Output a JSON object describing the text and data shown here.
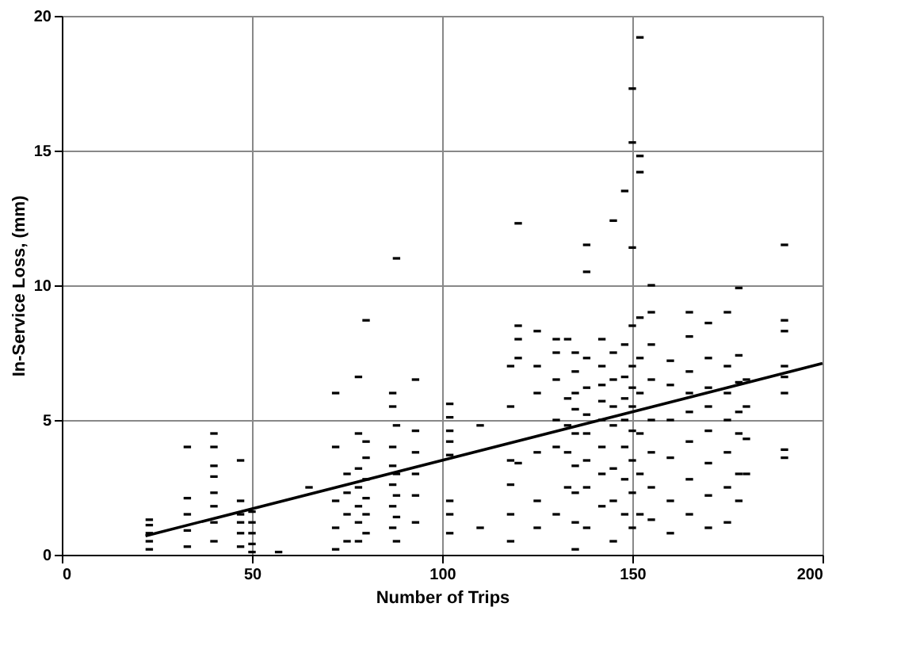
{
  "chart_data": {
    "type": "scatter",
    "xlabel": "Number of Trips",
    "ylabel": "In-Service Loss,       (mm)",
    "xlim": [
      0,
      200
    ],
    "xticks": [
      0,
      50,
      100,
      150,
      200
    ],
    "ylim": [
      0,
      20
    ],
    "yticks": [
      0,
      5,
      10,
      15,
      20
    ],
    "grid": true,
    "series": [
      {
        "color": "#000000",
        "marker": "square",
        "x": [
          23,
          23,
          23,
          23,
          23,
          33,
          33,
          33,
          33,
          33,
          40,
          40,
          40,
          40,
          40,
          40,
          40,
          40,
          47,
          47,
          47,
          47,
          47,
          47,
          50,
          50,
          50,
          50,
          50,
          57,
          65,
          72,
          72,
          72,
          72,
          72,
          75,
          75,
          75,
          75,
          78,
          78,
          78,
          78,
          78,
          78,
          78,
          80,
          80,
          80,
          80,
          80,
          80,
          80,
          87,
          87,
          87,
          87,
          87,
          87,
          87,
          88,
          88,
          88,
          88,
          88,
          88,
          93,
          93,
          93,
          93,
          93,
          93,
          102,
          102,
          102,
          102,
          102,
          102,
          102,
          102,
          110,
          110,
          118,
          118,
          118,
          118,
          118,
          118,
          120,
          120,
          120,
          120,
          120,
          125,
          125,
          125,
          125,
          125,
          125,
          130,
          130,
          130,
          130,
          130,
          130,
          133,
          133,
          133,
          133,
          133,
          135,
          135,
          135,
          135,
          135,
          135,
          135,
          135,
          135,
          138,
          138,
          138,
          138,
          138,
          138,
          138,
          138,
          138,
          142,
          142,
          142,
          142,
          142,
          142,
          142,
          142,
          145,
          145,
          145,
          145,
          145,
          145,
          145,
          145,
          148,
          148,
          148,
          148,
          148,
          148,
          148,
          148,
          150,
          150,
          150,
          150,
          150,
          150,
          150,
          150,
          150,
          150,
          150,
          152,
          152,
          152,
          152,
          152,
          152,
          152,
          152,
          152,
          155,
          155,
          155,
          155,
          155,
          155,
          155,
          155,
          160,
          160,
          160,
          160,
          160,
          160,
          165,
          165,
          165,
          165,
          165,
          165,
          165,
          165,
          170,
          170,
          170,
          170,
          170,
          170,
          170,
          170,
          175,
          175,
          175,
          175,
          175,
          175,
          175,
          178,
          178,
          178,
          178,
          178,
          178,
          178,
          180,
          180,
          180,
          180,
          190,
          190,
          190,
          190,
          190,
          190,
          190,
          190
        ],
        "values": [
          0.2,
          0.5,
          0.8,
          1.1,
          1.3,
          0.3,
          0.9,
          1.5,
          2.1,
          4.0,
          0.5,
          1.2,
          1.8,
          2.3,
          2.9,
          3.3,
          4.0,
          4.5,
          0.3,
          0.8,
          1.2,
          1.5,
          2.0,
          3.5,
          0.1,
          0.4,
          0.8,
          1.2,
          1.6,
          0.1,
          2.5,
          0.2,
          1.0,
          2.0,
          4.0,
          6.0,
          0.5,
          1.5,
          2.3,
          3.0,
          0.5,
          1.2,
          1.8,
          2.5,
          3.2,
          4.5,
          6.6,
          0.8,
          1.5,
          2.1,
          2.8,
          3.6,
          4.2,
          8.7,
          1.0,
          1.8,
          2.6,
          3.3,
          4.0,
          5.5,
          6.0,
          0.5,
          1.4,
          2.2,
          3.0,
          4.8,
          11.0,
          1.2,
          2.2,
          3.0,
          3.8,
          4.6,
          6.5,
          0.8,
          1.5,
          2.0,
          3.7,
          4.2,
          4.6,
          5.1,
          5.6,
          1.0,
          4.8,
          0.5,
          1.5,
          2.6,
          3.5,
          5.5,
          7.0,
          12.3,
          8.5,
          8.0,
          7.3,
          3.4,
          1.0,
          2.0,
          3.8,
          6.0,
          7.0,
          8.3,
          1.5,
          4.0,
          5.0,
          6.5,
          7.5,
          8.0,
          2.5,
          3.8,
          4.8,
          5.8,
          8.0,
          0.2,
          1.2,
          2.3,
          3.3,
          4.5,
          5.4,
          6.0,
          6.8,
          7.5,
          1.0,
          2.5,
          3.5,
          4.5,
          5.2,
          6.2,
          7.3,
          10.5,
          11.5,
          1.8,
          3.0,
          4.0,
          5.0,
          5.7,
          6.3,
          7.0,
          8.0,
          0.5,
          2.0,
          3.2,
          4.8,
          5.5,
          6.5,
          7.5,
          12.4,
          1.5,
          2.8,
          4.0,
          5.0,
          5.8,
          6.6,
          7.8,
          13.5,
          1.0,
          2.3,
          3.5,
          4.6,
          5.5,
          6.2,
          7.0,
          8.5,
          11.4,
          17.3,
          15.3,
          1.5,
          3.0,
          4.5,
          6.0,
          7.3,
          8.8,
          19.2,
          14.8,
          14.2,
          1.3,
          2.5,
          3.8,
          5.0,
          6.5,
          7.8,
          9.0,
          10.0,
          0.8,
          2.0,
          3.6,
          5.0,
          6.3,
          7.2,
          1.5,
          2.8,
          4.2,
          5.3,
          6.0,
          6.8,
          8.1,
          9.0,
          1.0,
          2.2,
          3.4,
          4.6,
          5.5,
          6.2,
          7.3,
          8.6,
          1.2,
          2.5,
          3.8,
          5.0,
          6.0,
          7.0,
          9.0,
          2.0,
          3.0,
          4.5,
          5.3,
          6.4,
          7.4,
          9.9,
          3.0,
          4.3,
          5.5,
          6.5,
          3.6,
          3.9,
          6.0,
          6.6,
          7.0,
          8.3,
          8.7,
          11.5
        ]
      },
      {
        "type": "line",
        "marker": "none",
        "color": "#000000",
        "x": [
          22,
          200
        ],
        "values": [
          0.7,
          7.1
        ]
      }
    ]
  }
}
